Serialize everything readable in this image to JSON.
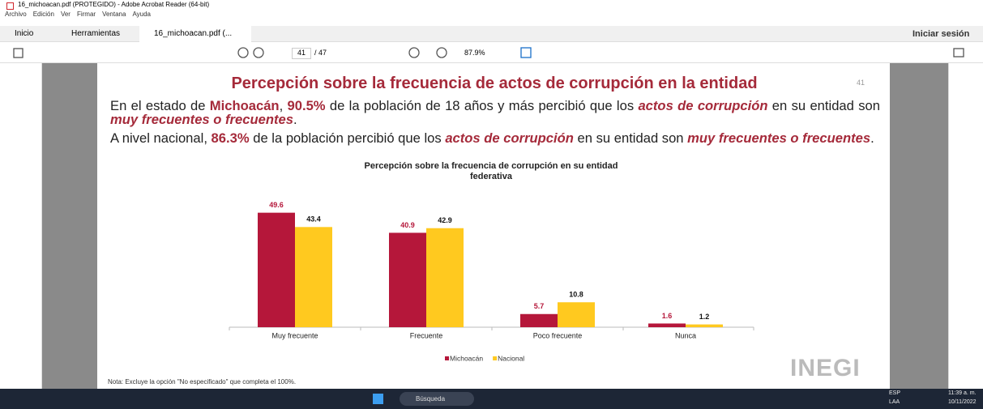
{
  "window": {
    "title": "16_michoacan.pdf (PROTEGIDO) - Adobe Acrobat Reader (64-bit)",
    "menu": [
      "Archivo",
      "Edición",
      "Ver",
      "Firmar",
      "Ventana",
      "Ayuda"
    ]
  },
  "tabs": {
    "items": [
      "Inicio",
      "Herramientas",
      "16_michoacan.pdf (..."
    ],
    "sign_in": "Iniciar sesión"
  },
  "toolbar": {
    "page": "41",
    "page_total": "/ 47",
    "zoom": "87.9%"
  },
  "document": {
    "title": "Percepción sobre la frecuencia de actos de corrupción en la entidad",
    "page_number": "41",
    "paragraphs": [
      [
        {
          "text": "En el estado de "
        },
        {
          "text": "Michoacán",
          "style": "b"
        },
        {
          "text": ", "
        },
        {
          "text": "90.5%",
          "style": "b"
        },
        {
          "text": " de la población de 18 años y más percibió que los "
        },
        {
          "text": "actos de corrupción",
          "style": "bi"
        },
        {
          "text": " en su entidad son "
        },
        {
          "text": "muy frecuentes o frecuentes",
          "style": "bi"
        },
        {
          "text": "."
        }
      ],
      [
        {
          "text": "A nivel nacional, "
        },
        {
          "text": "86.3%",
          "style": "b"
        },
        {
          "text": " de la población percibió que los "
        },
        {
          "text": "actos de corrupción",
          "style": "bi"
        },
        {
          "text": " en su entidad son "
        },
        {
          "text": "muy frecuentes o frecuentes",
          "style": "bi"
        },
        {
          "text": "."
        }
      ]
    ],
    "note": "Nota: Excluye la opción \"No especificado\" que completa el 100%.",
    "logo": "INEGI"
  },
  "chart_data": {
    "type": "bar",
    "title": "Percepción sobre la frecuencia de corrupción en su entidad federativa",
    "categories": [
      "Muy frecuente",
      "Frecuente",
      "Poco frecuente",
      "Nunca"
    ],
    "series": [
      {
        "name": "Michoacán",
        "color": "#b5173a",
        "values": [
          49.6,
          40.9,
          5.7,
          1.6
        ]
      },
      {
        "name": "Nacional",
        "color": "#ffc91f",
        "values": [
          43.4,
          42.9,
          10.8,
          1.2
        ]
      }
    ],
    "legend": "bottom"
  },
  "taskbar": {
    "search": "Búsqueda",
    "language": "ESP",
    "layout": "LAA",
    "time": "11:39 a. m.",
    "date": "10/11/2022"
  }
}
